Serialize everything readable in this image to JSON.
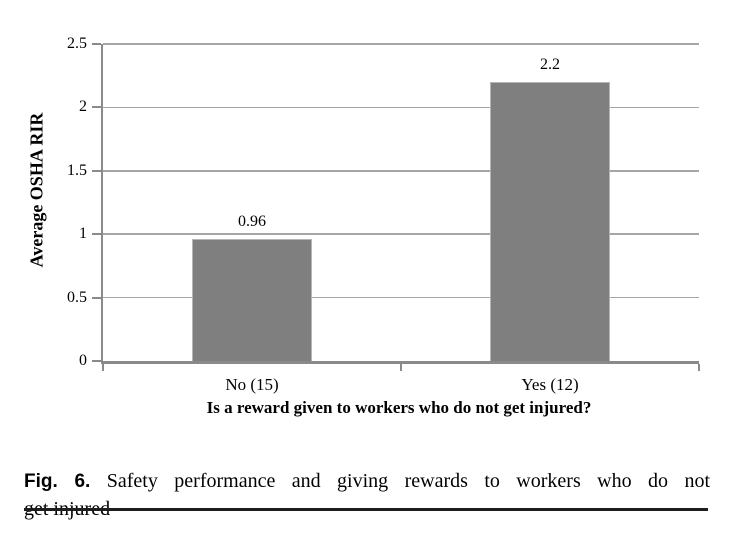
{
  "figure": {
    "caption_label": "Fig. 6.",
    "caption_line1": "Safety performance and giving rewards to workers who do not",
    "caption_line2": "get injured"
  },
  "chart_data": {
    "type": "bar",
    "title": "",
    "categories": [
      "No (15)",
      "Yes (12)"
    ],
    "values": [
      0.96,
      2.2
    ],
    "data_labels": [
      "0.96",
      "2.2"
    ],
    "xlabel": "Is a reward given to workers who do not get injured?",
    "ylabel": "Average OSHA RIR",
    "ylim": [
      0,
      2.5
    ],
    "yticks": [
      0,
      0.5,
      1,
      1.5,
      2,
      2.5
    ],
    "ytick_labels": [
      "0",
      "0.5",
      "1",
      "1.5",
      "2",
      "2.5"
    ],
    "grid": "horizontal",
    "legend": "none",
    "bar_color": "#7f7f7f",
    "bar_border_color": "#b5b5b5",
    "gridline_color": "#a6a6a6",
    "axis_color": "#8a8a8a",
    "text_color": "#000000"
  }
}
